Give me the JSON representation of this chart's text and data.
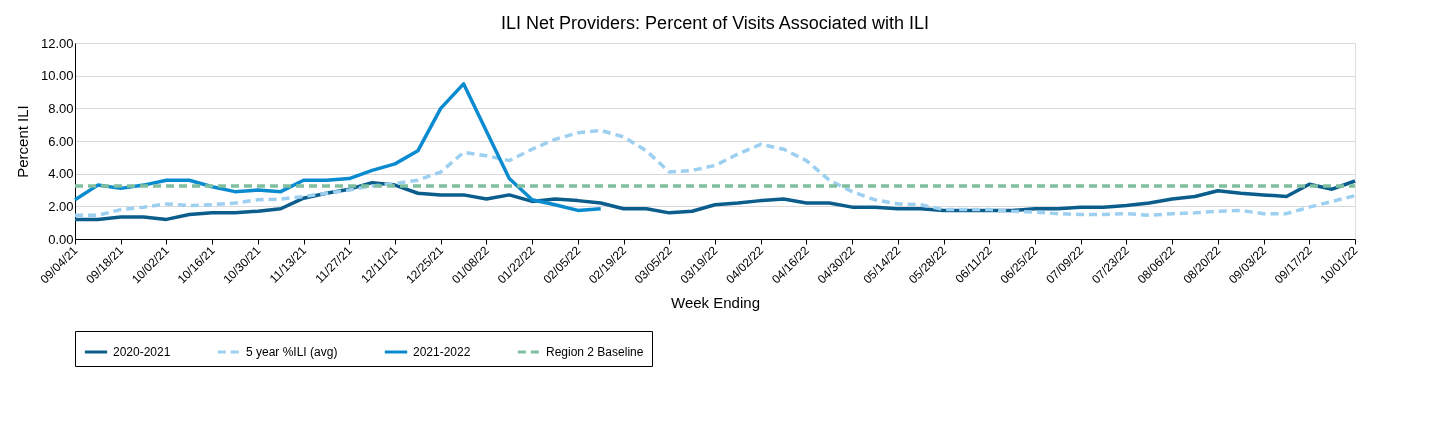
{
  "chart_data": {
    "type": "line",
    "title": "ILI Net Providers:  Percent of Visits Associated with ILI",
    "xlabel": "Week Ending",
    "ylabel": "Percent ILI",
    "categories": [
      "09/04/21",
      null,
      "09/18/21",
      null,
      "10/02/21",
      null,
      "10/16/21",
      null,
      "10/30/21",
      null,
      "11/13/21",
      null,
      "11/27/21",
      null,
      "12/11/21",
      null,
      "12/25/21",
      null,
      "01/08/22",
      null,
      "01/22/22",
      null,
      "02/05/22",
      null,
      "02/19/22",
      null,
      "03/05/22",
      null,
      "03/19/22",
      null,
      "04/02/22",
      null,
      "04/16/22",
      null,
      "04/30/22",
      null,
      "05/14/22",
      null,
      "05/28/22",
      null,
      "06/11/22",
      null,
      "06/25/22",
      null,
      "07/09/22",
      null,
      "07/23/22",
      null,
      "08/06/22",
      null,
      "08/20/22",
      null,
      "09/03/22",
      null,
      "09/17/22",
      null,
      "10/01/22"
    ],
    "series": [
      {
        "name": "2020-2021",
        "color": "#0b5e8c",
        "line_style": "solid",
        "values": [
          1.2,
          1.2,
          1.35,
          1.35,
          1.2,
          1.5,
          1.6,
          1.6,
          1.7,
          1.85,
          2.5,
          2.8,
          3.05,
          3.45,
          3.3,
          2.8,
          2.7,
          2.7,
          2.45,
          2.7,
          2.3,
          2.45,
          2.35,
          2.2,
          1.85,
          1.85,
          1.6,
          1.7,
          2.1,
          2.2,
          2.35,
          2.45,
          2.2,
          2.2,
          1.95,
          1.95,
          1.85,
          1.85,
          1.75,
          1.75,
          1.75,
          1.75,
          1.85,
          1.85,
          1.95,
          1.95,
          2.05,
          2.2,
          2.45,
          2.6,
          2.95,
          2.8,
          2.7,
          2.6,
          3.35,
          3.05,
          3.55
        ]
      },
      {
        "name": "5 year %ILI (avg)",
        "color": "#9dcff0",
        "line_style": "dashed",
        "values": [
          1.45,
          1.45,
          1.8,
          1.95,
          2.15,
          2.05,
          2.1,
          2.2,
          2.4,
          2.45,
          2.6,
          2.8,
          3.0,
          3.25,
          3.4,
          3.6,
          4.1,
          5.3,
          5.1,
          4.8,
          5.5,
          6.1,
          6.5,
          6.65,
          6.25,
          5.4,
          4.1,
          4.2,
          4.5,
          5.2,
          5.8,
          5.5,
          4.8,
          3.6,
          2.9,
          2.4,
          2.15,
          2.1,
          1.8,
          1.8,
          1.8,
          1.7,
          1.65,
          1.55,
          1.5,
          1.5,
          1.55,
          1.45,
          1.55,
          1.6,
          1.7,
          1.75,
          1.55,
          1.55,
          1.95,
          2.3,
          2.65
        ]
      },
      {
        "name": "2021-2022",
        "color": "#0a8bd0",
        "line_style": "solid",
        "values": [
          2.4,
          3.3,
          3.1,
          3.3,
          3.6,
          3.6,
          3.2,
          2.9,
          3.0,
          2.9,
          3.6,
          3.6,
          3.7,
          4.2,
          4.6,
          5.4,
          8.0,
          9.5,
          6.6,
          3.7,
          2.4,
          2.1,
          1.75,
          1.85,
          null,
          null,
          null,
          null,
          null,
          null,
          null,
          null,
          null,
          null,
          null,
          null,
          null,
          null,
          null,
          null,
          null,
          null,
          null,
          null,
          null,
          null,
          null,
          null,
          null,
          null,
          null,
          null,
          null,
          null,
          null,
          null,
          null
        ]
      },
      {
        "name": "Region 2 Baseline",
        "color": "#7fbf9f",
        "line_style": "dashed",
        "values": [
          3.25,
          3.25,
          3.25,
          3.25,
          3.25,
          3.25,
          3.25,
          3.25,
          3.25,
          3.25,
          3.25,
          3.25,
          3.25,
          3.25,
          3.25,
          3.25,
          3.25,
          3.25,
          3.25,
          3.25,
          3.25,
          3.25,
          3.25,
          3.25,
          3.25,
          3.25,
          3.25,
          3.25,
          3.25,
          3.25,
          3.25,
          3.25,
          3.25,
          3.25,
          3.25,
          3.25,
          3.25,
          3.25,
          3.25,
          3.25,
          3.25,
          3.25,
          3.25,
          3.25,
          3.25,
          3.25,
          3.25,
          3.25,
          3.25,
          3.25,
          3.25,
          3.25,
          3.25,
          3.25,
          3.25,
          3.25,
          3.25
        ]
      }
    ],
    "ylim": [
      0,
      12
    ],
    "yticks": [
      {
        "value": 0,
        "label": "0.00"
      },
      {
        "value": 2,
        "label": "2.00"
      },
      {
        "value": 4,
        "label": "4.00"
      },
      {
        "value": 6,
        "label": "6.00"
      },
      {
        "value": 8,
        "label": "8.00"
      },
      {
        "value": 10,
        "label": "10.00"
      },
      {
        "value": 12,
        "label": "12.00"
      }
    ],
    "grid": "y",
    "legend": "bottom",
    "marker": "none"
  }
}
